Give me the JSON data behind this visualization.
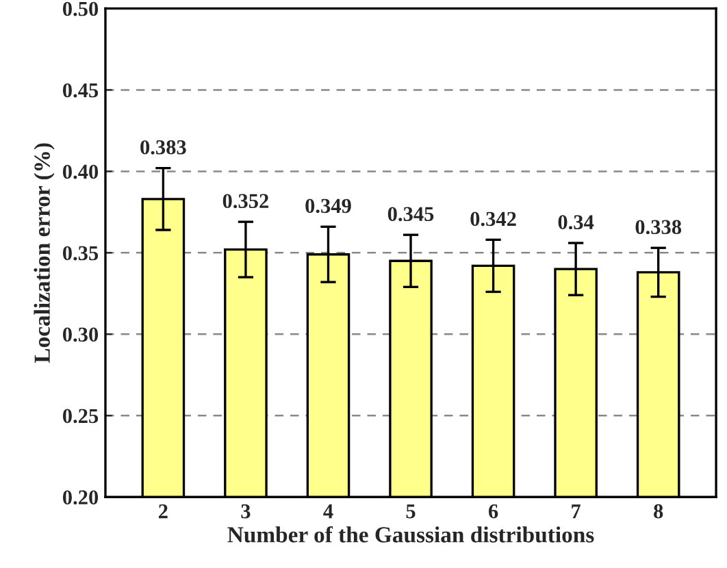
{
  "chart_data": {
    "type": "bar",
    "xlabel": "Number of the Gaussian distributions",
    "ylabel": "Localization error (%)",
    "categories": [
      "2",
      "3",
      "4",
      "5",
      "6",
      "7",
      "8"
    ],
    "values": [
      0.383,
      0.352,
      0.349,
      0.345,
      0.342,
      0.34,
      0.338
    ],
    "errors": [
      0.019,
      0.017,
      0.017,
      0.016,
      0.016,
      0.016,
      0.015
    ],
    "color": "#ffff8c",
    "data_labels": true,
    "ylim": [
      0.2,
      0.5
    ],
    "yticks": [
      {
        "value": 0.2,
        "label": "0.20"
      },
      {
        "value": 0.25,
        "label": "0.25"
      },
      {
        "value": 0.3,
        "label": "0.30"
      },
      {
        "value": 0.35,
        "label": "0.35"
      },
      {
        "value": 0.4,
        "label": "0.40"
      },
      {
        "value": 0.45,
        "label": "0.45"
      },
      {
        "value": 0.5,
        "label": "0.50"
      }
    ],
    "grid": "y"
  }
}
